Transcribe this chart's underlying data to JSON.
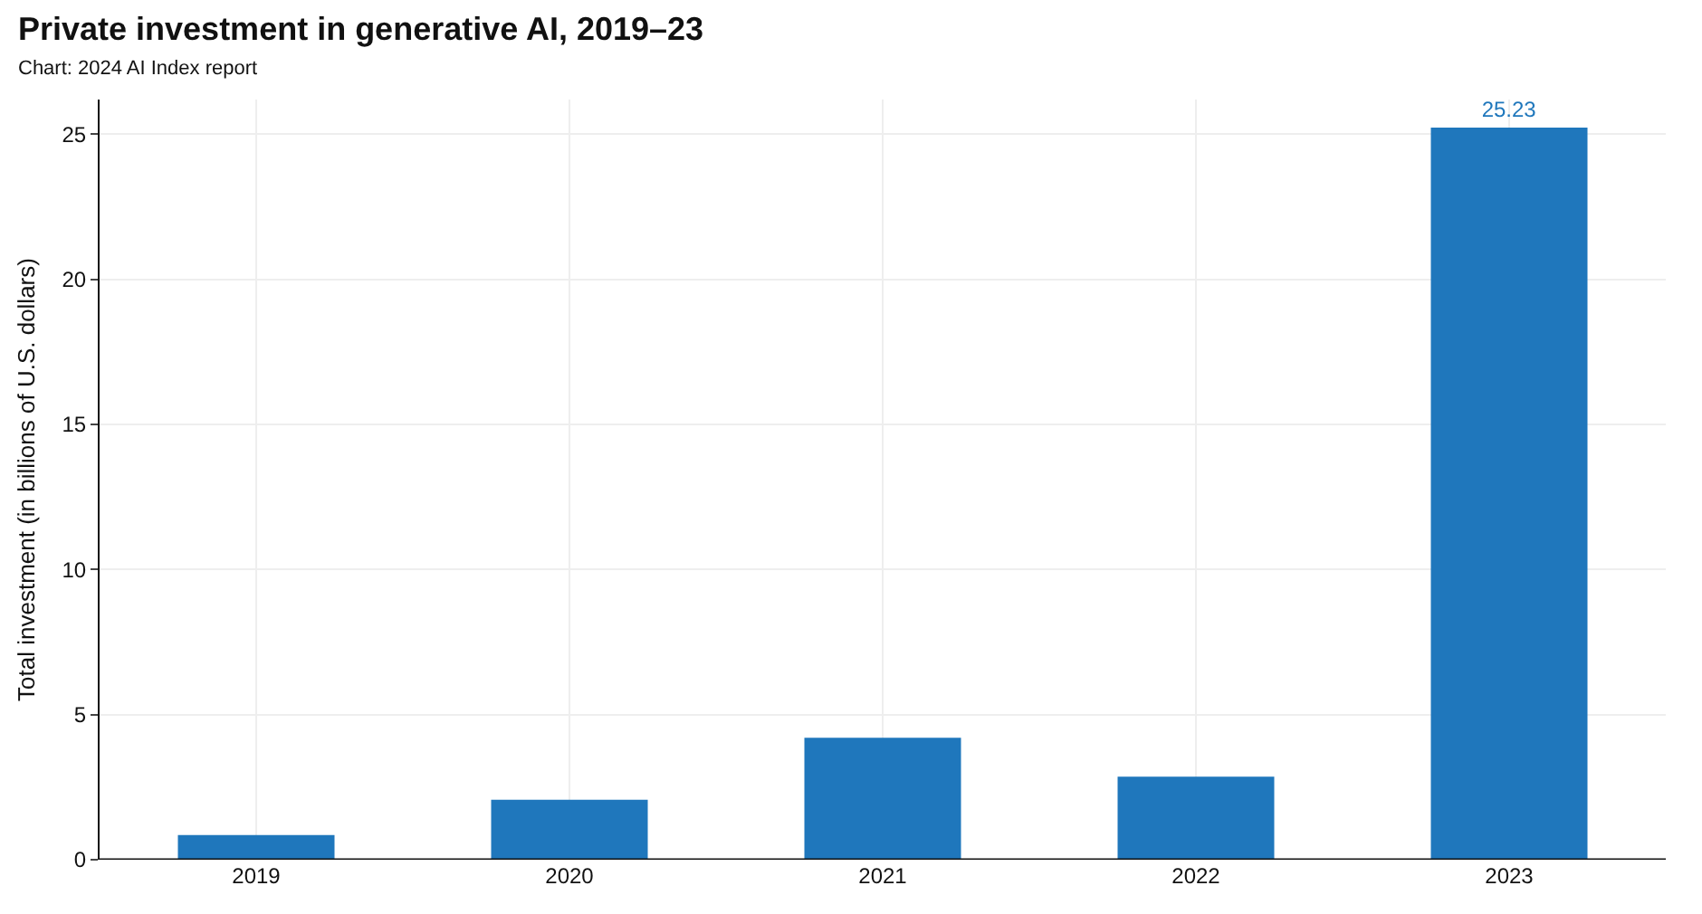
{
  "chart_data": {
    "type": "bar",
    "title": "Private investment in generative AI, 2019–23",
    "subtitle": "Chart: 2024 AI Index report",
    "ylabel": "Total investment (in billions of U.S. dollars)",
    "categories": [
      "2019",
      "2020",
      "2021",
      "2022",
      "2023"
    ],
    "values": [
      0.85,
      2.07,
      4.2,
      2.86,
      25.23
    ],
    "value_labels": [
      null,
      null,
      null,
      null,
      "25.23"
    ],
    "color": "#1f77bc",
    "ylim": [
      0,
      26.2
    ],
    "yticks": [
      0,
      5,
      10,
      15,
      20,
      25
    ],
    "grid": true
  }
}
